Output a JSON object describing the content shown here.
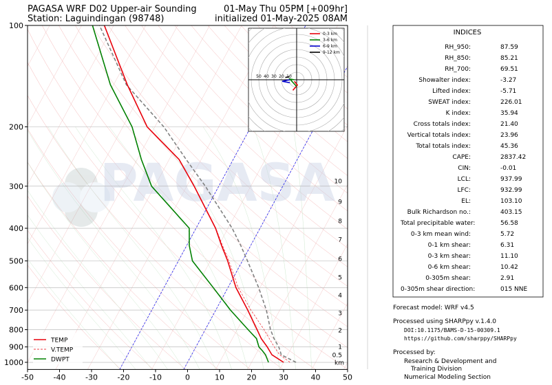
{
  "chart_data": {
    "type": "skewt",
    "title": "PAGASA WRF D02 Upper-air Sounding",
    "station": "Station: Laguindingan (98748)",
    "valid": "01-May Thu 05PM [+009hr]",
    "initialized": "initialized 01-May-2025 08AM",
    "watermark": "PAGASA",
    "xlim": [
      -50,
      50
    ],
    "xticks": [
      -50,
      -40,
      -30,
      -20,
      -10,
      0,
      10,
      20,
      30,
      40,
      50
    ],
    "ylim": [
      1050,
      100
    ],
    "yticks": [
      100,
      200,
      300,
      400,
      500,
      600,
      700,
      800,
      900,
      1000
    ],
    "log_y": true,
    "highlight_isotherms": [
      -20,
      0
    ],
    "pressure": [
      1000,
      950,
      925,
      900,
      850,
      800,
      700,
      600,
      500,
      450,
      400,
      300,
      250,
      200,
      150,
      100
    ],
    "series": [
      {
        "name": "TEMP",
        "color": "#e8000b",
        "style": "solid",
        "values": [
          30.0,
          25.1,
          23.7,
          22.3,
          19.0,
          16.2,
          10.0,
          2.5,
          -4.6,
          -9.1,
          -13.9,
          -27.7,
          -36.9,
          -52.4,
          -65.7,
          -82.9
        ]
      },
      {
        "name": "V.TEMP",
        "color": "#e8000b",
        "style": "dashed",
        "values": [
          32.0,
          27.5,
          26.0,
          24.5,
          21.5,
          18.4,
          11.0,
          3.2,
          -4.2,
          -8.8,
          -13.8,
          -27.7,
          -36.9,
          -52.4,
          -65.7,
          -82.9
        ]
      },
      {
        "name": "DWPT",
        "color": "#008000",
        "style": "solid",
        "values": [
          25.3,
          23.1,
          21.5,
          19.7,
          17.5,
          13.4,
          4.6,
          -4.6,
          -15.6,
          -19.2,
          -22.1,
          -41.0,
          -48.7,
          -57.1,
          -71.0,
          -86.6
        ]
      }
    ],
    "parcel": {
      "color": "#808080",
      "values": [
        33.9,
        28.0,
        27.0,
        25.9,
        23.0,
        20.4,
        15.8,
        9.6,
        1.6,
        -3.1,
        -8.7,
        -24.2,
        -34.7,
        -47.2,
        -66.0,
        -84.4
      ]
    },
    "heights": {
      "labels": [
        10,
        9,
        8,
        7,
        6,
        5,
        4,
        3,
        2,
        1,
        0.5
      ],
      "pressure": [
        289,
        333,
        380,
        431,
        492,
        558,
        631,
        713,
        802,
        898,
        950
      ],
      "unit": "km"
    },
    "hodograph": {
      "rings": [
        50,
        40,
        30,
        20,
        10
      ],
      "series": [
        {
          "name": "0-3 km",
          "color": "#e8000b",
          "u": [
            -5,
            1,
            -3
          ],
          "v": [
            -14,
            -7,
            -2
          ]
        },
        {
          "name": "3-6 km",
          "color": "#008000",
          "u": [
            -3,
            -9,
            0
          ],
          "v": [
            0,
            1,
            -9
          ]
        },
        {
          "name": "6-9 km",
          "color": "#0000cc",
          "u": [
            -9,
            -19,
            -9
          ],
          "v": [
            0,
            -2,
            -4
          ]
        },
        {
          "name": "9-12 km",
          "color": "#000000",
          "u": [
            -15,
            -10
          ],
          "v": [
            3,
            4
          ]
        }
      ]
    }
  },
  "indices": {
    "title": "INDICES",
    "rows": [
      [
        "RH_950:",
        "87.59"
      ],
      [
        "RH_850:",
        "85.21"
      ],
      [
        "RH_700:",
        "69.51"
      ],
      [
        "Showalter index:",
        "-3.27"
      ],
      [
        "Lifted index:",
        "-5.71"
      ],
      [
        "SWEAT index:",
        "226.01"
      ],
      [
        "K index:",
        "35.94"
      ],
      [
        "Cross totals index:",
        "21.40"
      ],
      [
        "Vertical totals index:",
        "23.96"
      ],
      [
        "Total totals index:",
        "45.36"
      ],
      [
        "CAPE:",
        "2837.42"
      ],
      [
        "CIN:",
        "-0.01"
      ],
      [
        "LCL:",
        "937.99"
      ],
      [
        "LFC:",
        "932.99"
      ],
      [
        "EL:",
        "103.10"
      ],
      [
        "Bulk Richardson no.:",
        "403.15"
      ],
      [
        "Total precipitable water:",
        "56.58"
      ],
      [
        "0-3 km mean wind:",
        "5.72"
      ],
      [
        "0-1 km shear:",
        "6.31"
      ],
      [
        "0-3 km shear:",
        "11.10"
      ],
      [
        "0-6 km shear:",
        "10.42"
      ],
      [
        "0-305m shear:",
        "2.91"
      ],
      [
        "0-305m shear direction:",
        "015 NNE"
      ]
    ]
  },
  "footer": {
    "model": "Forecast model: WRF v4.5",
    "processed": "Processed using SHARPpy v.1.4.0",
    "doi": "DOI:10.1175/BAMS-D-15-00309.1",
    "url": "https://github.com/sharppy/SHARPpy",
    "by": "Processed by:",
    "org": [
      "Research & Development and",
      "Training Division",
      "Numerical Modeling Section"
    ]
  }
}
